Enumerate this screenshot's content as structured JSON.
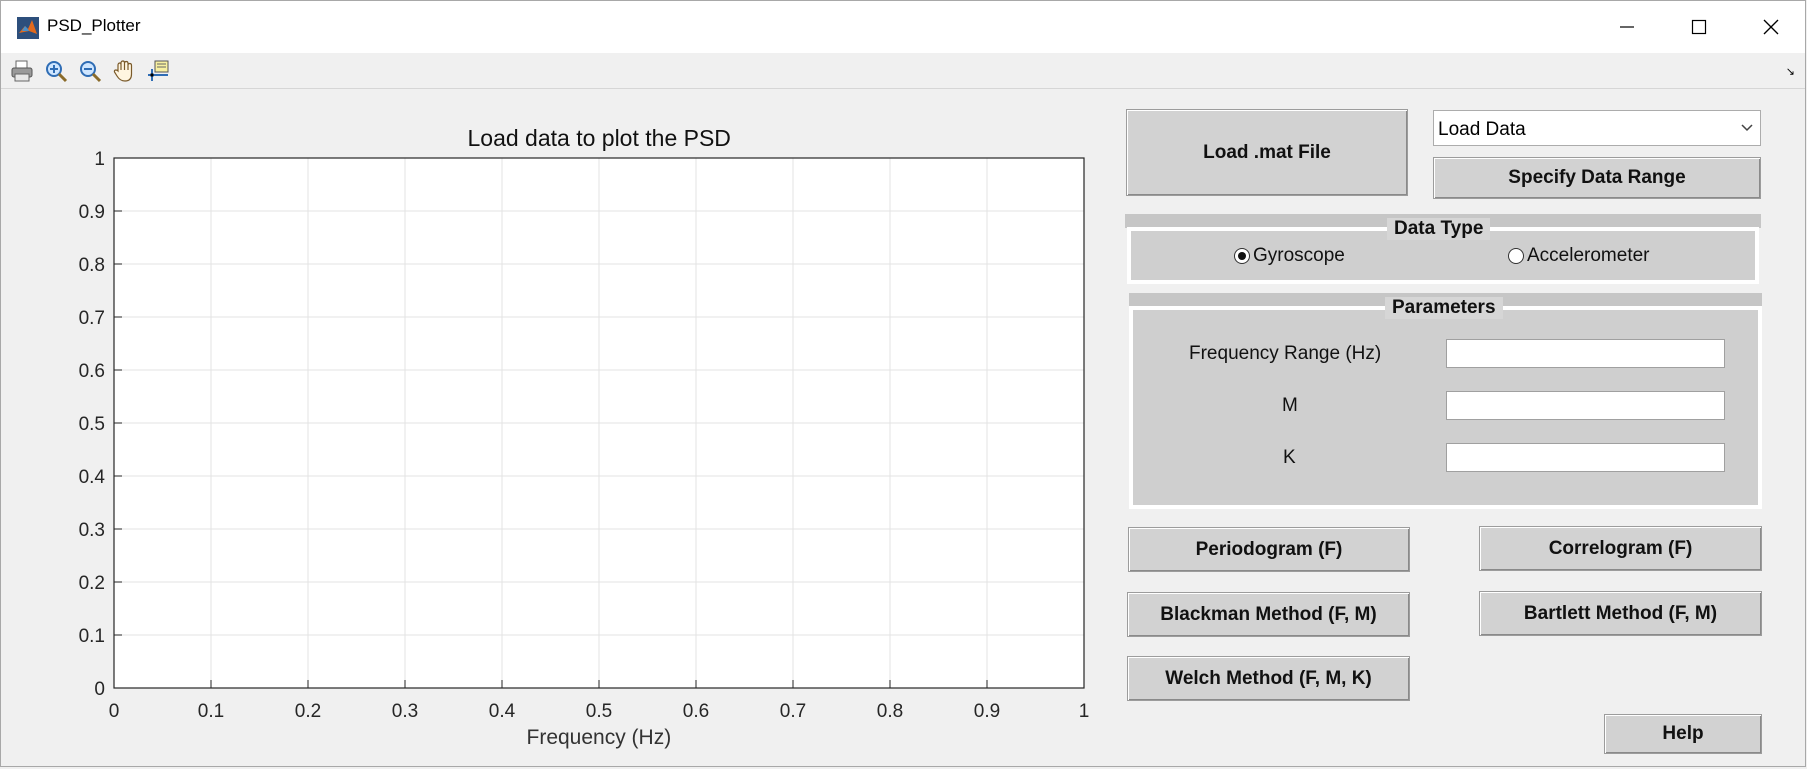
{
  "window": {
    "title": "PSD_Plotter"
  },
  "toolbar": {
    "icons": [
      "print-icon",
      "zoom-in-icon",
      "zoom-out-icon",
      "pan-hand-icon",
      "data-cursor-icon"
    ]
  },
  "axes": {
    "title": "Load data to plot the PSD",
    "xlabel": "Frequency (Hz)"
  },
  "chart_data": {
    "type": "line",
    "title": "Load data to plot the PSD",
    "xlabel": "Frequency (Hz)",
    "ylabel": "",
    "xlim": [
      0,
      1
    ],
    "ylim": [
      0,
      1
    ],
    "x_ticks": [
      "0",
      "0.1",
      "0.2",
      "0.3",
      "0.4",
      "0.5",
      "0.6",
      "0.7",
      "0.8",
      "0.9",
      "1"
    ],
    "y_ticks": [
      "0",
      "0.1",
      "0.2",
      "0.3",
      "0.4",
      "0.5",
      "0.6",
      "0.7",
      "0.8",
      "0.9",
      "1"
    ],
    "grid": true,
    "series": []
  },
  "controls": {
    "load_mat_label": "Load .mat File",
    "dropdown_value": "Load Data",
    "specify_range_label": "Specify Data Range",
    "data_type": {
      "title": "Data Type",
      "options": [
        "Gyroscope",
        "Accelerometer"
      ],
      "selected": "Gyroscope"
    },
    "parameters": {
      "title": "Parameters",
      "freq_range_label": "Frequency Range (Hz)",
      "m_label": "M",
      "k_label": "K",
      "freq_range_value": "",
      "m_value": "",
      "k_value": ""
    },
    "periodogram_label": "Periodogram (F)",
    "correlogram_label": "Correlogram (F)",
    "blackman_label": "Blackman Method (F, M)",
    "bartlett_label": "Bartlett Method (F, M)",
    "welch_label": "Welch Method (F, M, K)",
    "help_label": "Help"
  }
}
